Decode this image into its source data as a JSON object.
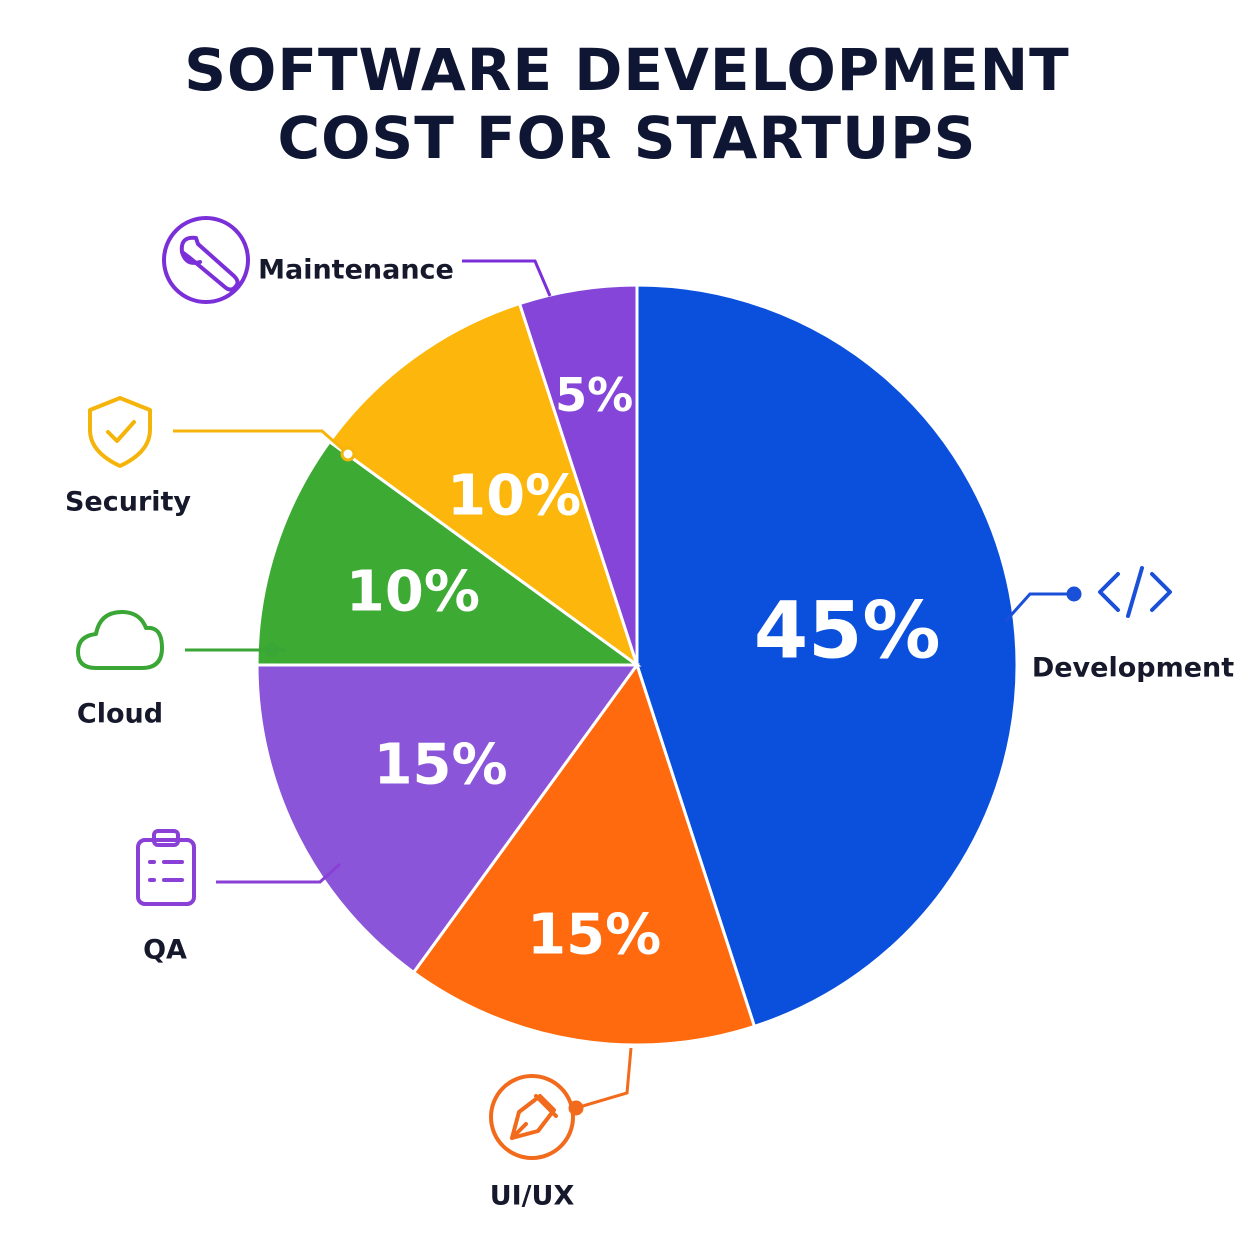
{
  "header": {
    "title_line1": "SOFTWARE DEVELOPMENT",
    "title_line2": "COST FOR STARTUPS"
  },
  "chart_data": {
    "type": "pie",
    "title": "SOFTWARE DEVELOPMENT COST FOR STARTUPS",
    "start_angle_deg": 0,
    "direction": "clockwise",
    "slices": [
      {
        "label": "Development",
        "value": 45,
        "value_label": "45%",
        "color": "#0b50dc",
        "icon": "code-icon"
      },
      {
        "label": "UI/UX",
        "value": 15,
        "value_label": "15%",
        "color": "#fe6a0d",
        "icon": "pen-nib-icon"
      },
      {
        "label": "QA",
        "value": 15,
        "value_label": "15%",
        "color": "#8a55d9",
        "icon": "clipboard-icon"
      },
      {
        "label": "Cloud",
        "value": 10,
        "value_label": "10%",
        "color": "#3daa34",
        "icon": "cloud-icon"
      },
      {
        "label": "Security",
        "value": 10,
        "value_label": "10%",
        "color": "#fdb60b",
        "icon": "shield-check-icon"
      },
      {
        "label": "Maintenance",
        "value": 5,
        "value_label": "5%",
        "color": "#8545d8",
        "icon": "wrench-icon"
      }
    ],
    "label_colors": {
      "Development": "#1a4fd8",
      "UI/UX": "#f26a1b",
      "QA": "#8a3fd6",
      "Cloud": "#3aa635",
      "Security": "#f5b40a",
      "Maintenance": "#7b2fd8"
    }
  }
}
